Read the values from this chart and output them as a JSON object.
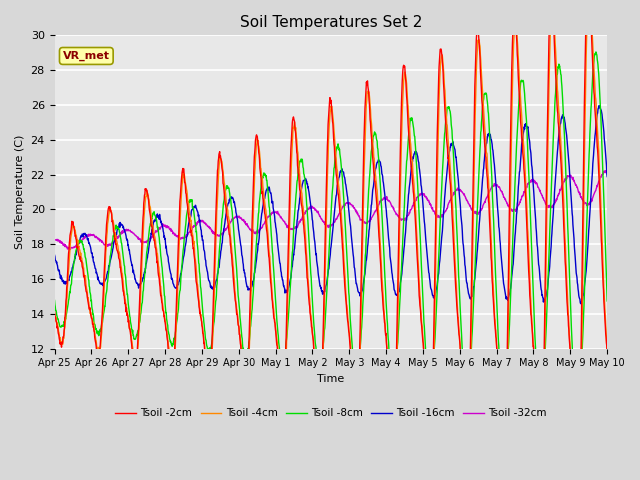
{
  "title": "Soil Temperatures Set 2",
  "xlabel": "Time",
  "ylabel": "Soil Temperature (C)",
  "ylim": [
    12,
    30
  ],
  "yticks": [
    12,
    14,
    16,
    18,
    20,
    22,
    24,
    26,
    28,
    30
  ],
  "annotation": "VR_met",
  "background_color": "#e8e8e8",
  "legend_entries": [
    "Tsoil -2cm",
    "Tsoil -4cm",
    "Tsoil -8cm",
    "Tsoil -16cm",
    "Tsoil -32cm"
  ],
  "line_colors": [
    "#ff0000",
    "#ff8800",
    "#00dd00",
    "#0000cc",
    "#cc00cc"
  ],
  "x_tick_labels": [
    "Apr 25",
    "Apr 26",
    "Apr 27",
    "Apr 28",
    "Apr 29",
    "Apr 30",
    "May 1",
    "May 2",
    "May 3",
    "May 4",
    "May 5",
    "May 6",
    "May 7",
    "May 8",
    "May 9",
    "May 10"
  ],
  "x_tick_positions": [
    0,
    1,
    2,
    3,
    4,
    5,
    6,
    7,
    8,
    9,
    10,
    11,
    12,
    13,
    14,
    15
  ]
}
